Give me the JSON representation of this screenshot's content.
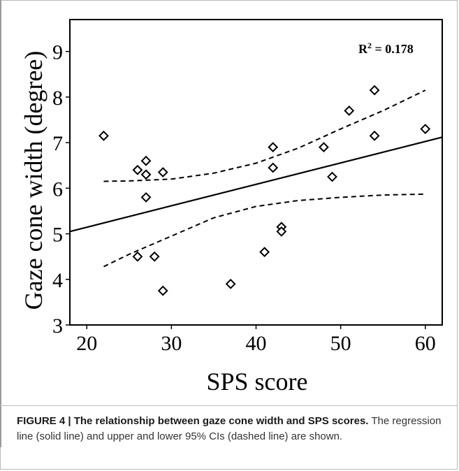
{
  "chart_data": {
    "type": "scatter",
    "xlabel": "SPS score",
    "ylabel": "Gaze cone width (degree)",
    "xlim": [
      18,
      62
    ],
    "ylim": [
      3,
      9.7
    ],
    "xticks": [
      20,
      30,
      40,
      50,
      60
    ],
    "yticks": [
      3,
      4,
      5,
      6,
      7,
      8,
      9
    ],
    "grid": false,
    "annotation": {
      "prefix": "R",
      "sup": "2",
      "suffix": " = 0.178",
      "placement": "top-right"
    },
    "points": [
      {
        "x": 22,
        "y": 7.15
      },
      {
        "x": 26,
        "y": 6.4
      },
      {
        "x": 26,
        "y": 4.5
      },
      {
        "x": 27,
        "y": 6.6
      },
      {
        "x": 27,
        "y": 6.3
      },
      {
        "x": 27,
        "y": 5.8
      },
      {
        "x": 28,
        "y": 4.5
      },
      {
        "x": 29,
        "y": 6.35
      },
      {
        "x": 29,
        "y": 3.75
      },
      {
        "x": 37,
        "y": 3.9
      },
      {
        "x": 41,
        "y": 4.6
      },
      {
        "x": 42,
        "y": 6.9
      },
      {
        "x": 42,
        "y": 6.45
      },
      {
        "x": 43,
        "y": 5.15
      },
      {
        "x": 43,
        "y": 5.05
      },
      {
        "x": 48,
        "y": 6.9
      },
      {
        "x": 49,
        "y": 6.25
      },
      {
        "x": 51,
        "y": 7.7
      },
      {
        "x": 54,
        "y": 8.15
      },
      {
        "x": 54,
        "y": 7.15
      },
      {
        "x": 60,
        "y": 7.3
      }
    ],
    "regression_line": {
      "style": "solid",
      "x": [
        18,
        62
      ],
      "y": [
        5.05,
        7.12
      ]
    },
    "ci_upper": {
      "style": "dashed",
      "x": [
        22,
        25,
        30,
        35,
        40,
        45,
        50,
        55,
        60
      ],
      "y": [
        6.15,
        6.16,
        6.2,
        6.33,
        6.55,
        6.88,
        7.3,
        7.7,
        8.15
      ]
    },
    "ci_lower": {
      "style": "dashed",
      "x": [
        22,
        25,
        30,
        35,
        40,
        45,
        50,
        55,
        60
      ],
      "y": [
        4.28,
        4.55,
        4.95,
        5.35,
        5.6,
        5.73,
        5.8,
        5.85,
        5.87
      ]
    }
  },
  "caption": {
    "title": "FIGURE 4 | The relationship between gaze cone width and SPS scores.",
    "text": "The regression line (solid line) and upper and lower 95% CIs (dashed line) are shown."
  }
}
